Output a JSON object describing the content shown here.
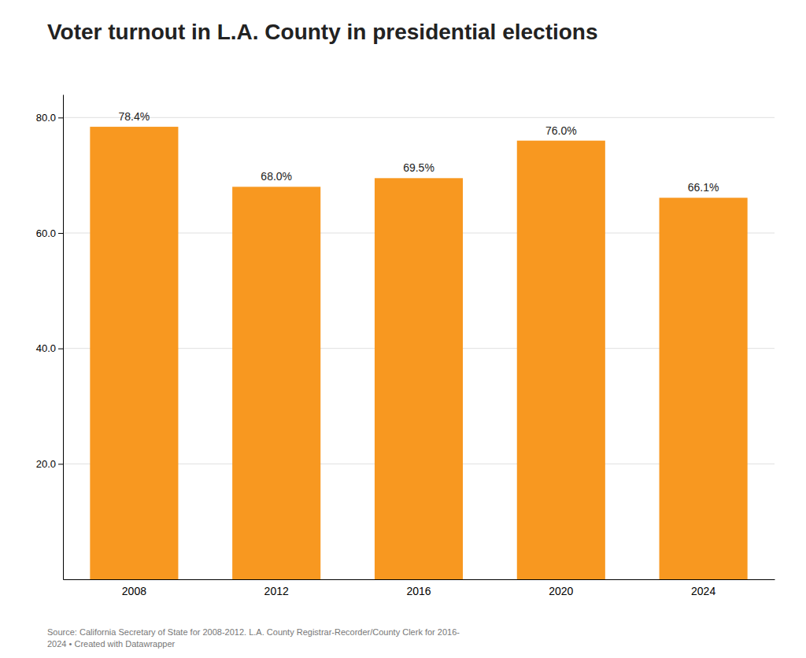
{
  "chart_data": {
    "type": "bar",
    "title": "Voter turnout in L.A. County in presidential elections",
    "source": "Source: California Secretary of State for 2008-2012. L.A. County Registrar-Recorder/County Clerk for 2016-\n2024 • Created with Datawrapper",
    "categories": [
      "2008",
      "2012",
      "2016",
      "2020",
      "2024"
    ],
    "values": [
      78.4,
      68.0,
      69.5,
      76.0,
      66.1
    ],
    "value_labels": [
      "78.4%",
      "68.0%",
      "69.5%",
      "76.0%",
      "66.1%"
    ],
    "data_labels": true,
    "color": "#F89820",
    "ylim": [
      0,
      84
    ],
    "yticks": [
      {
        "value": 20.0,
        "label": "20.0"
      },
      {
        "value": 40.0,
        "label": "40.0"
      },
      {
        "value": 60.0,
        "label": "60.0"
      },
      {
        "value": 80.0,
        "label": "80.0"
      }
    ],
    "grid": true
  }
}
